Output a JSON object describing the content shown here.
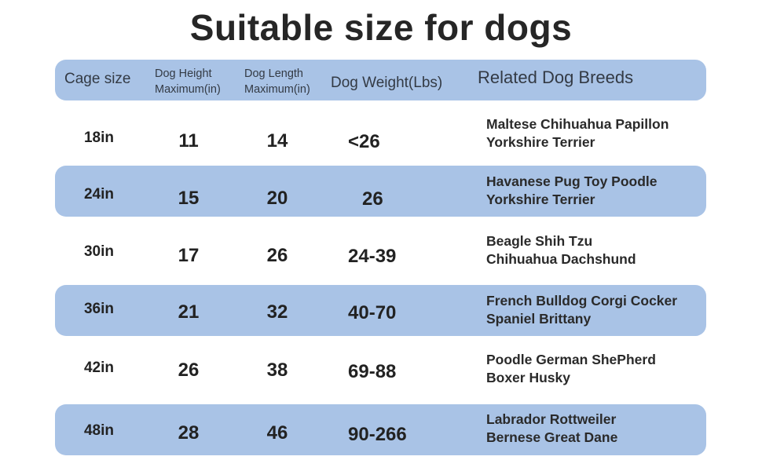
{
  "title": "Suitable size for dogs",
  "colors": {
    "band": "#a9c3e6",
    "text": "#222222"
  },
  "header": {
    "cage_size": "Cage size",
    "dog_height_1": "Dog Height",
    "dog_height_2": "Maximum(in)",
    "dog_length_1": "Dog Length",
    "dog_length_2": "Maximum(in)",
    "dog_weight": "Dog Weight(Lbs)",
    "related_breeds": "Related Dog Breeds"
  },
  "rows": [
    {
      "size": "18in",
      "height": "11",
      "length": "14",
      "weight": "<26",
      "breeds_1": "Maltese Chihuahua  Papillon",
      "breeds_2": "Yorkshire Terrier"
    },
    {
      "size": "24in",
      "height": "15",
      "length": "20",
      "weight": "26",
      "breeds_1": "Havanese Pug Toy Poodle",
      "breeds_2": "Yorkshire Terrier"
    },
    {
      "size": "30in",
      "height": "17",
      "length": "26",
      "weight": "24-39",
      "breeds_1": "Beagle Shih Tzu",
      "breeds_2": "Chihuahua Dachshund"
    },
    {
      "size": "36in",
      "height": "21",
      "length": "32",
      "weight": "40-70",
      "breeds_1": "French Bulldog Corgi Cocker",
      "breeds_2": "Spaniel Brittany"
    },
    {
      "size": "42in",
      "height": "26",
      "length": "38",
      "weight": "69-88",
      "breeds_1": "Poodle German ShePherd",
      "breeds_2": "Boxer Husky"
    },
    {
      "size": "48in",
      "height": "28",
      "length": "46",
      "weight": "90-266",
      "breeds_1": "Labrador Rottweiler",
      "breeds_2": "Bernese Great Dane"
    }
  ]
}
